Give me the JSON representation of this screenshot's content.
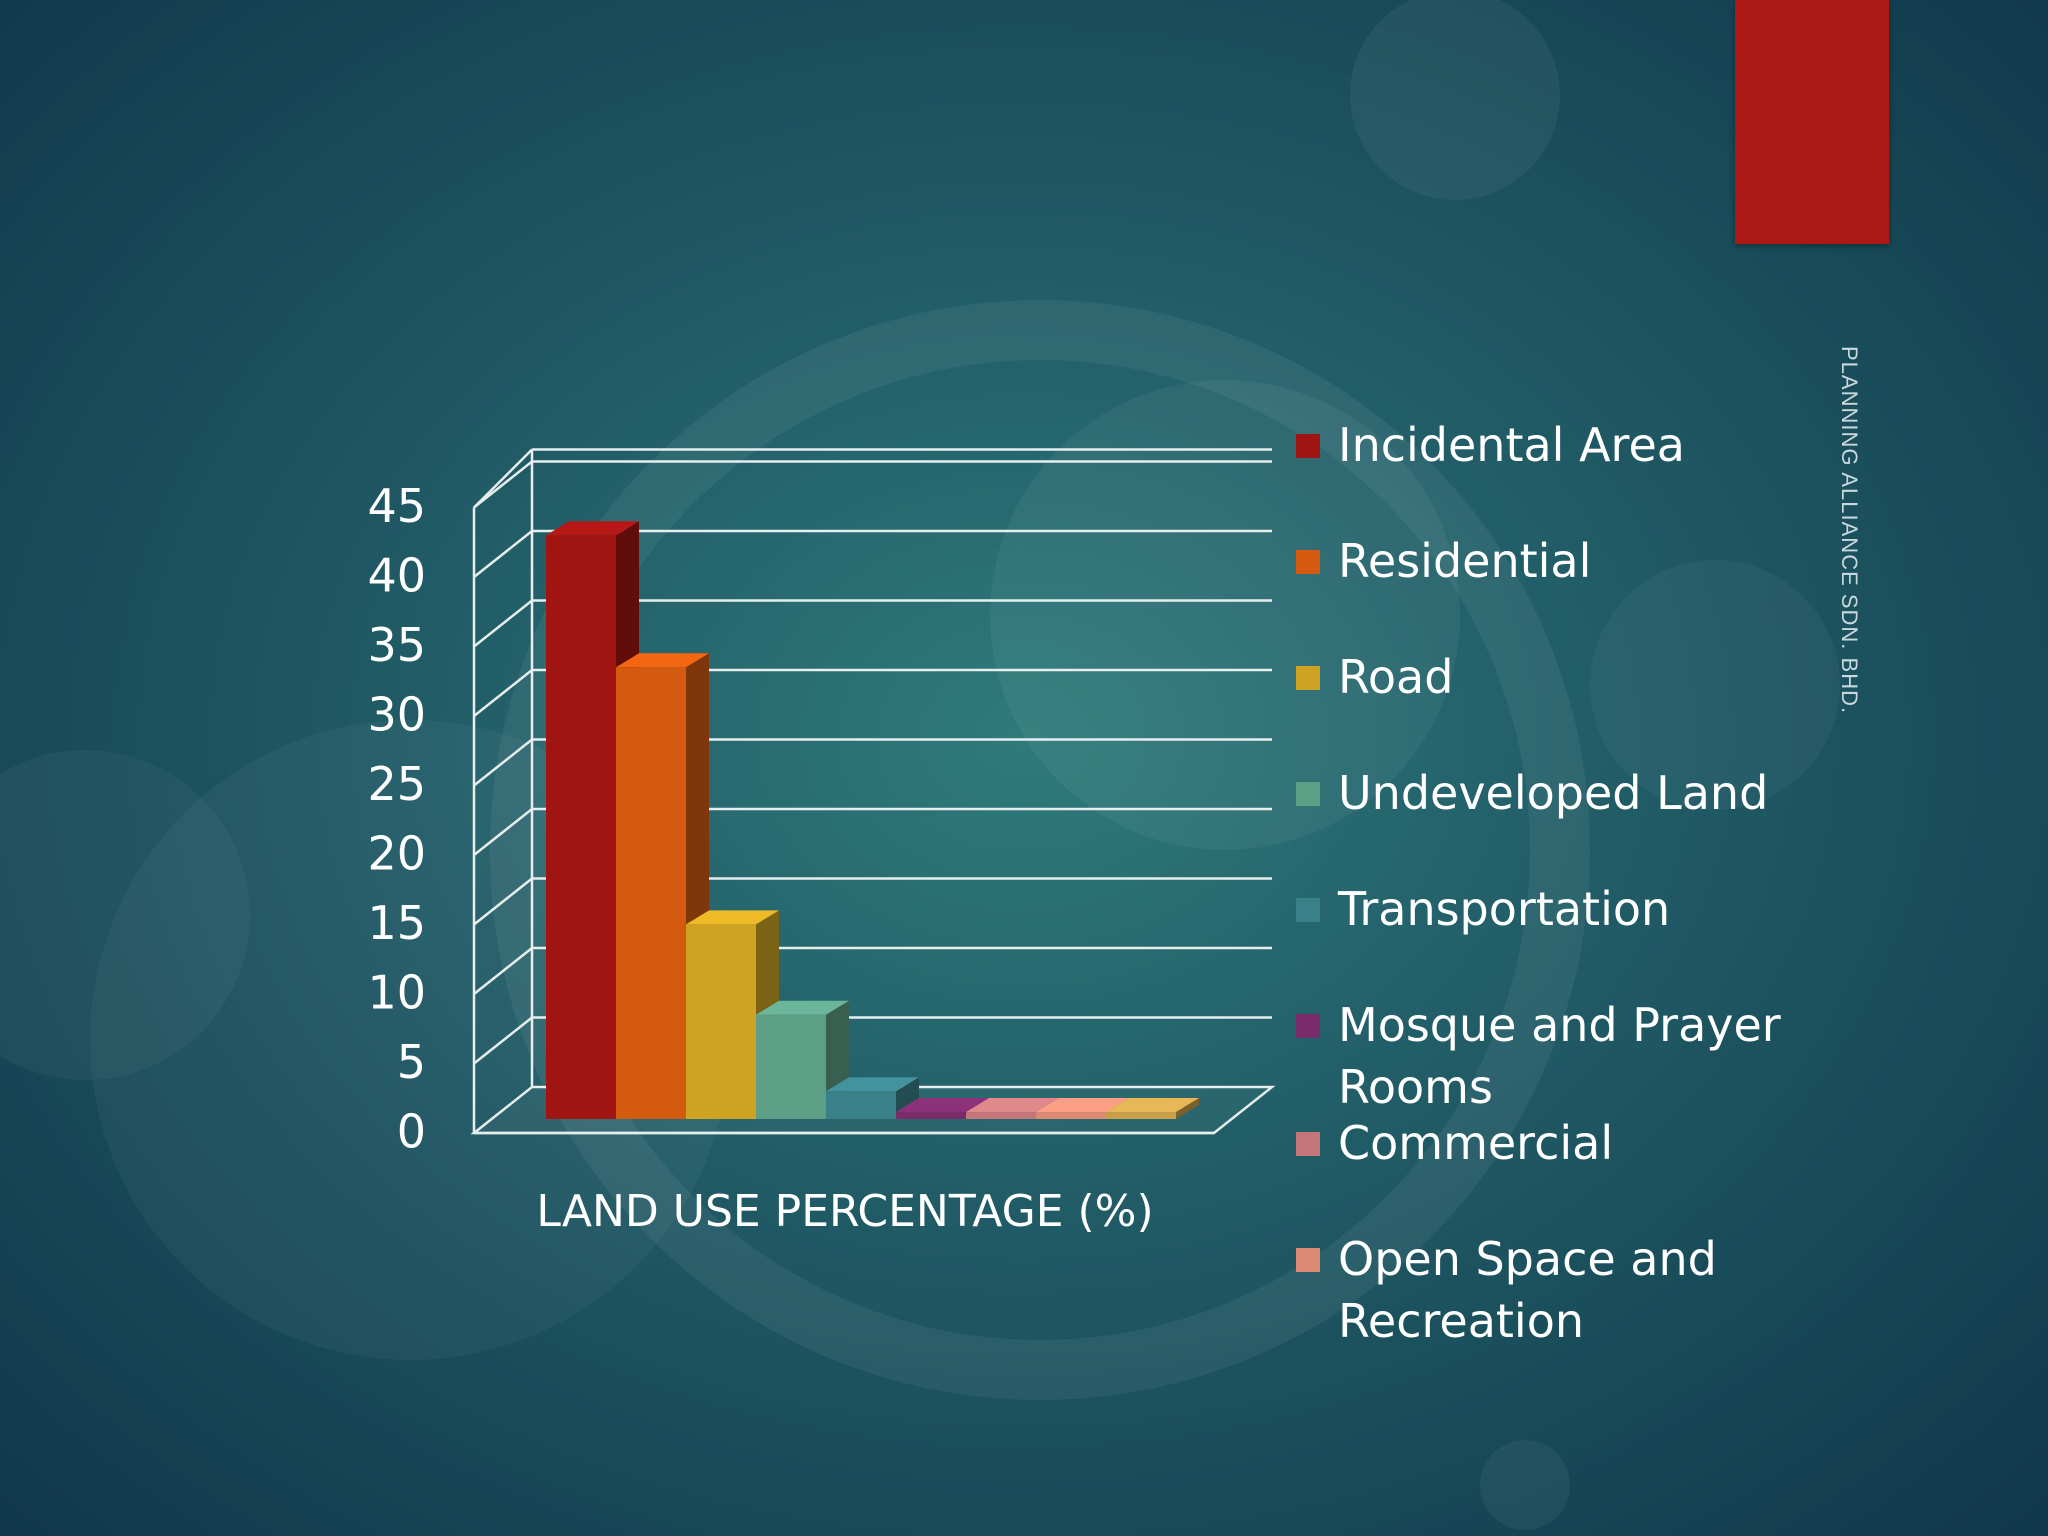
{
  "slide": {
    "vertical_text": "PLANNING ALLIANCE SDN. BHD.",
    "accent_color": "#ac1914"
  },
  "chart_data": {
    "type": "bar",
    "style": "3d-column",
    "categories": [
      "LAND USE PERCENTAGE (%)"
    ],
    "xlabel": "LAND USE PERCENTAGE (%)",
    "ylim": [
      0,
      45
    ],
    "yticks": [
      "0",
      "5",
      "10",
      "15",
      "20",
      "25",
      "30",
      "35",
      "40",
      "45"
    ],
    "grid": true,
    "legend_position": "right",
    "series": [
      {
        "name": "Incidental Area",
        "color": "#a01512",
        "values": [
          42
        ]
      },
      {
        "name": "Residential",
        "color": "#d45a10",
        "values": [
          32.5
        ]
      },
      {
        "name": "Road",
        "color": "#cfa322",
        "values": [
          14
        ]
      },
      {
        "name": "Undeveloped Land",
        "color": "#5d9e86",
        "values": [
          7.5
        ]
      },
      {
        "name": "Transportation",
        "color": "#3a8089",
        "values": [
          2
        ]
      },
      {
        "name": "Mosque and Prayer Rooms",
        "color": "#7a2b6a",
        "values": [
          0.5
        ]
      },
      {
        "name": "Commercial",
        "color": "#c47678",
        "values": [
          0.5
        ]
      },
      {
        "name": "Open Space and Recreation",
        "color": "#dc8a74",
        "values": [
          0.5
        ]
      },
      {
        "name": "",
        "color": "#c9a04a",
        "values": [
          0.5
        ]
      }
    ]
  }
}
